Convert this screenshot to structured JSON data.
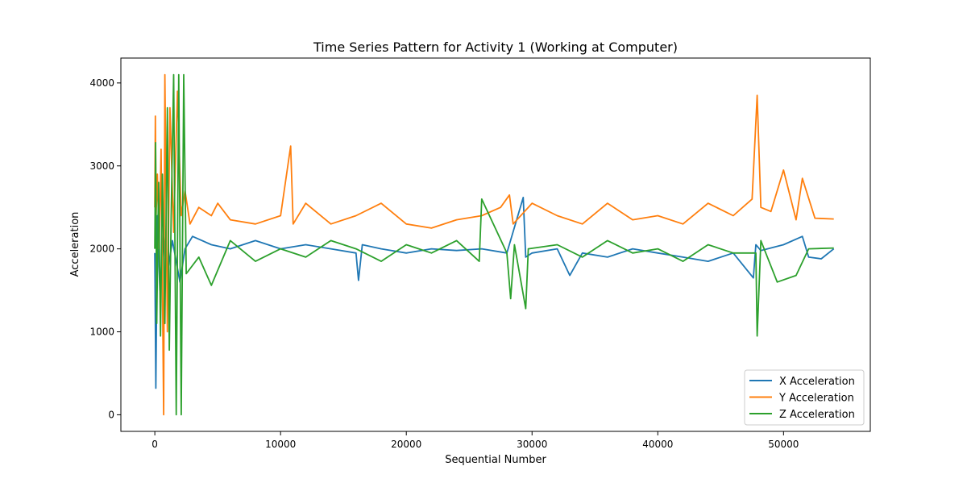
{
  "colors": {
    "x_series": "#1f77b4",
    "y_series": "#ff7f0e",
    "z_series": "#2ca02c",
    "axes": "#000000",
    "background": "#ffffff"
  },
  "chart_data": {
    "type": "line",
    "title": "Time Series Pattern for Activity 1 (Working at Computer)",
    "xlabel": "Sequential Number",
    "ylabel": "Acceleration",
    "xlim": [
      -2700,
      56900
    ],
    "ylim": [
      -200,
      4300
    ],
    "xticks": [
      0,
      10000,
      20000,
      30000,
      40000,
      50000
    ],
    "xtick_labels": [
      "0",
      "10000",
      "20000",
      "30000",
      "40000",
      "50000"
    ],
    "yticks": [
      0,
      1000,
      2000,
      3000,
      4000
    ],
    "ytick_labels": [
      "0",
      "1000",
      "2000",
      "3000",
      "4000"
    ],
    "grid": false,
    "legend_position": "lower right",
    "series": [
      {
        "name": "X Acceleration",
        "color": "#1f77b4",
        "x": [
          0,
          80,
          200,
          400,
          700,
          1000,
          1400,
          2000,
          2400,
          3000,
          4500,
          6000,
          8000,
          10000,
          12000,
          14000,
          16000,
          16200,
          16500,
          18000,
          20000,
          22000,
          24000,
          26000,
          28000,
          29300,
          29500,
          30000,
          32000,
          33000,
          34000,
          36000,
          38000,
          40000,
          42000,
          44000,
          46000,
          47600,
          47800,
          48200,
          50000,
          51500,
          52000,
          53000,
          54000
        ],
        "y": [
          1950,
          320,
          2400,
          1500,
          2200,
          1700,
          2100,
          1600,
          2000,
          2150,
          2050,
          2000,
          2100,
          2000,
          2050,
          2000,
          1950,
          1620,
          2050,
          2000,
          1950,
          2000,
          1980,
          2000,
          1950,
          2620,
          1900,
          1950,
          2000,
          1680,
          1950,
          1900,
          2000,
          1950,
          1900,
          1850,
          1950,
          1650,
          2050,
          1980,
          2050,
          2150,
          1900,
          1880,
          2000
        ]
      },
      {
        "name": "Y Acceleration",
        "color": "#ff7f0e",
        "x": [
          0,
          40,
          100,
          200,
          350,
          500,
          700,
          800,
          1000,
          1200,
          1500,
          1800,
          2100,
          2400,
          2800,
          3500,
          4500,
          5000,
          6000,
          8000,
          10000,
          10800,
          11000,
          12000,
          14000,
          16000,
          18000,
          20000,
          22000,
          24000,
          26000,
          27500,
          28200,
          28500,
          30000,
          32000,
          34000,
          36000,
          38000,
          40000,
          42000,
          44000,
          46000,
          47500,
          47900,
          48200,
          49000,
          50000,
          51000,
          51500,
          52500,
          54000
        ],
        "y": [
          2500,
          3600,
          2400,
          2900,
          2000,
          3200,
          0,
          4100,
          1000,
          3700,
          2200,
          3900,
          2400,
          2700,
          2300,
          2500,
          2400,
          2550,
          2350,
          2300,
          2400,
          3240,
          2300,
          2550,
          2300,
          2400,
          2550,
          2300,
          2250,
          2350,
          2400,
          2500,
          2650,
          2300,
          2550,
          2400,
          2300,
          2550,
          2350,
          2400,
          2300,
          2550,
          2400,
          2600,
          3850,
          2500,
          2450,
          2950,
          2350,
          2850,
          2370,
          2360
        ]
      },
      {
        "name": "Z Acceleration",
        "color": "#2ca02c",
        "x": [
          0,
          60,
          150,
          300,
          450,
          600,
          800,
          1000,
          1150,
          1300,
          1500,
          1700,
          1900,
          2100,
          2300,
          2500,
          3500,
          4500,
          6000,
          8000,
          10000,
          12000,
          14000,
          16000,
          18000,
          20000,
          22000,
          24000,
          25800,
          26000,
          28000,
          28300,
          28600,
          29500,
          29700,
          32000,
          34000,
          36000,
          38000,
          40000,
          42000,
          44000,
          46000,
          47800,
          47900,
          48200,
          49500,
          51000,
          52000,
          54000
        ],
        "y": [
          2000,
          3280,
          1100,
          2800,
          950,
          2900,
          1100,
          3700,
          780,
          2400,
          4100,
          0,
          4100,
          0,
          4100,
          1700,
          1900,
          1560,
          2100,
          1850,
          2000,
          1900,
          2100,
          2000,
          1850,
          2050,
          1950,
          2100,
          1850,
          2600,
          1950,
          1400,
          2050,
          1280,
          2000,
          2050,
          1900,
          2100,
          1950,
          2000,
          1850,
          2050,
          1950,
          1950,
          950,
          2100,
          1600,
          1680,
          2000,
          2010
        ]
      }
    ]
  }
}
